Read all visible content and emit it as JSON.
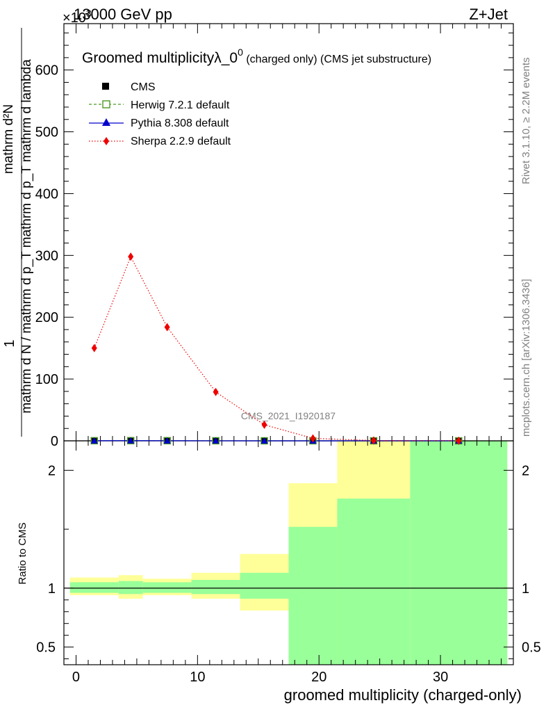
{
  "header": {
    "energy": "13000 GeV pp",
    "process": "Z+Jet",
    "exponent": "×10^3"
  },
  "side": {
    "rivet": "Rivet 3.1.10, ≥ 2.2M events",
    "mcplots": "mcplots.cern.ch [arXiv:1306.3436]"
  },
  "watermark": "CMS_2021_I1920187",
  "chart_data": [
    {
      "type": "line",
      "title_main": "Groomed multiplicityλ_0",
      "title_sup": "0",
      "title_rest": " (charged only) (CMS jet substructure)",
      "ylabel_num": "mathrm d²N",
      "ylabel_den": "mathrm d N / mathrm d p_T mathrm d p_T mathrm d lambda",
      "ylabel_one": "1",
      "ylim": [
        0,
        675
      ],
      "y_ticks": [
        0,
        100,
        200,
        300,
        400,
        500,
        600
      ],
      "y_tick_labels": [
        "0",
        "100",
        "200",
        "300",
        "400",
        "500",
        "600"
      ],
      "xlim": [
        -1,
        36
      ],
      "x": [
        1.5,
        4.5,
        7.5,
        11.5,
        15.5,
        19.5,
        24.5,
        31.5
      ],
      "series": [
        {
          "name": "CMS",
          "values": [
            0.15,
            0.3,
            0.18,
            0.08,
            0.03,
            0.005,
            0.001,
            0.0
          ],
          "color": "#000000",
          "marker": "square"
        },
        {
          "name": "Herwig 7.2.1 default",
          "values": [
            0.15,
            0.3,
            0.18,
            0.08,
            0.03,
            0.005,
            0.001,
            0.0
          ],
          "color": "#4a9a22",
          "marker": "open-square",
          "dash": "dashed"
        },
        {
          "name": "Pythia 8.308 default",
          "values": [
            0.15,
            0.3,
            0.18,
            0.08,
            0.03,
            0.005,
            0.001,
            0.0
          ],
          "color": "#0000cc",
          "marker": "triangle",
          "dash": "solid"
        },
        {
          "name": "Sherpa 2.2.9 default",
          "values": [
            150,
            298,
            184,
            79,
            26,
            4,
            0.5,
            0.1
          ],
          "color": "#ee0000",
          "marker": "diamond",
          "dash": "dotted"
        }
      ]
    },
    {
      "type": "area",
      "ylabel": "Ratio to CMS",
      "xlabel": "groomed multiplicity (charged-only)",
      "ylim": [
        0.35,
        2.25
      ],
      "y_ticks": [
        0.5,
        1,
        2
      ],
      "y_tick_labels": [
        "0.5",
        "1",
        "2"
      ],
      "x_ticks": [
        0,
        10,
        20,
        30
      ],
      "x_tick_labels": [
        "0",
        "10",
        "20",
        "30"
      ],
      "bins": [
        {
          "x0": -0.5,
          "x1": 3.5,
          "green": [
            0.96,
            1.05
          ],
          "yellow": [
            0.94,
            1.09
          ]
        },
        {
          "x0": 3.5,
          "x1": 5.5,
          "green": [
            0.95,
            1.06
          ],
          "yellow": [
            0.91,
            1.11
          ]
        },
        {
          "x0": 5.5,
          "x1": 9.5,
          "green": [
            0.96,
            1.05
          ],
          "yellow": [
            0.94,
            1.08
          ]
        },
        {
          "x0": 9.5,
          "x1": 13.5,
          "green": [
            0.95,
            1.07
          ],
          "yellow": [
            0.91,
            1.13
          ]
        },
        {
          "x0": 13.5,
          "x1": 17.5,
          "green": [
            0.91,
            1.13
          ],
          "yellow": [
            0.81,
            1.29
          ]
        },
        {
          "x0": 17.5,
          "x1": 21.5,
          "green": [
            0.35,
            1.52
          ],
          "yellow": [
            0.35,
            1.89
          ]
        },
        {
          "x0": 21.5,
          "x1": 27.5,
          "green": [
            0.35,
            1.76
          ],
          "yellow": [
            0.35,
            2.25
          ]
        },
        {
          "x0": 27.5,
          "x1": 35.5,
          "green": [
            0.35,
            2.25
          ],
          "yellow": [
            0.35,
            2.25
          ]
        }
      ]
    }
  ]
}
